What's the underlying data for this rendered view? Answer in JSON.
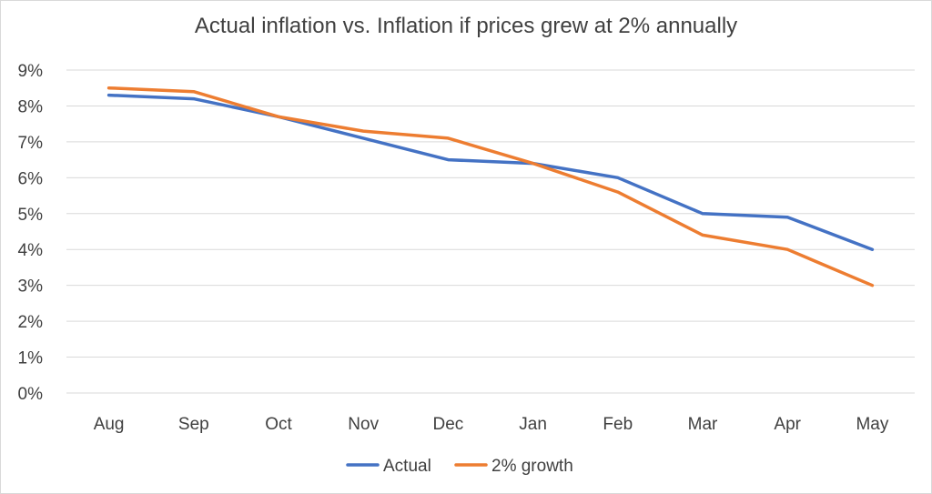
{
  "chart_data": {
    "type": "line",
    "title": "Actual inflation vs. Inflation if prices grew at 2% annually",
    "xlabel": "",
    "ylabel": "",
    "categories": [
      "Aug",
      "Sep",
      "Oct",
      "Nov",
      "Dec",
      "Jan",
      "Feb",
      "Mar",
      "Apr",
      "May"
    ],
    "ylim": [
      0,
      9
    ],
    "yticks": [
      "0%",
      "1%",
      "2%",
      "3%",
      "4%",
      "5%",
      "6%",
      "7%",
      "8%",
      "9%"
    ],
    "ytick_values": [
      0,
      1,
      2,
      3,
      4,
      5,
      6,
      7,
      8,
      9
    ],
    "grid": true,
    "legend_position": "bottom",
    "series": [
      {
        "name": "Actual",
        "color": "#4472C4",
        "values": [
          8.3,
          8.2,
          7.7,
          7.1,
          6.5,
          6.4,
          6.0,
          5.0,
          4.9,
          4.0
        ]
      },
      {
        "name": "2% growth",
        "color": "#ED7D31",
        "values": [
          8.5,
          8.4,
          7.7,
          7.3,
          7.1,
          6.4,
          5.6,
          4.4,
          4.0,
          3.0
        ]
      }
    ]
  }
}
